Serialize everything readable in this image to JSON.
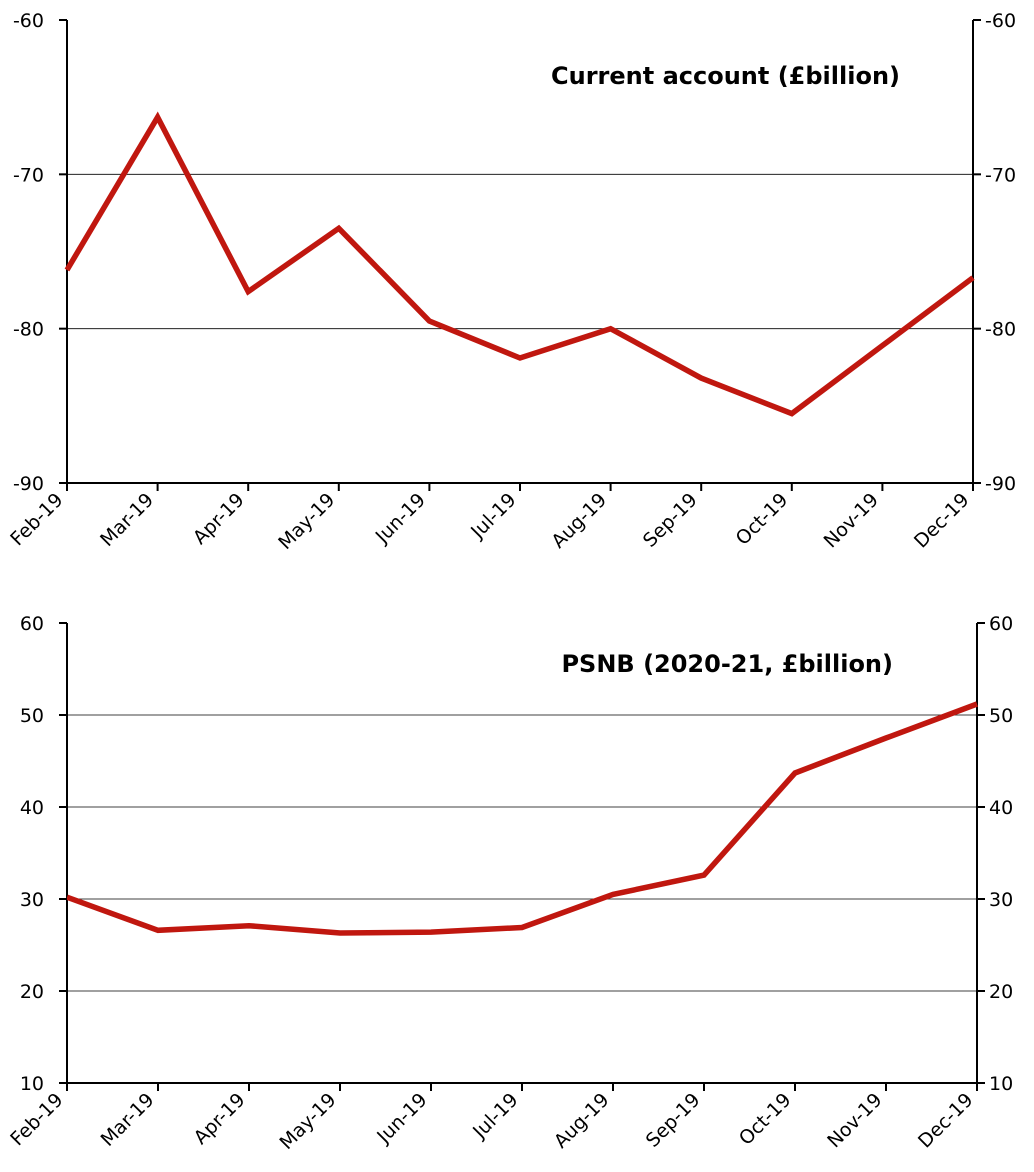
{
  "chart_data": [
    {
      "type": "line",
      "title": "Current account (£billion)",
      "xlabel": "",
      "ylabel": "",
      "categories": [
        "Feb-19",
        "Mar-19",
        "Apr-19",
        "May-19",
        "Jun-19",
        "Jul-19",
        "Aug-19",
        "Sep-19",
        "Oct-19",
        "Nov-19",
        "Dec-19"
      ],
      "y_tick_labels": [
        "-60",
        "-70",
        "-80",
        "-90"
      ],
      "ylim": [
        -90,
        -60
      ],
      "yticks": [
        -60,
        -70,
        -80,
        -90
      ],
      "grid": true,
      "legend": "none",
      "series": [
        {
          "color": "#c0170f",
          "values": [
            -76.2,
            -66.3,
            -77.6,
            -73.5,
            -79.5,
            -81.9,
            -80.0,
            -83.2,
            -85.5,
            -81.1,
            -76.7
          ]
        }
      ]
    },
    {
      "type": "line",
      "title": "PSNB (2020-21, £billion)",
      "xlabel": "",
      "ylabel": "",
      "categories": [
        "Feb-19",
        "Mar-19",
        "Apr-19",
        "May-19",
        "Jun-19",
        "Jul-19",
        "Aug-19",
        "Sep-19",
        "Oct-19",
        "Nov-19",
        "Dec-19"
      ],
      "y_tick_labels": [
        "60",
        "50",
        "40",
        "30",
        "20",
        "10"
      ],
      "ylim": [
        10,
        60
      ],
      "yticks": [
        60,
        50,
        40,
        30,
        20,
        10
      ],
      "grid": true,
      "legend": "none",
      "series": [
        {
          "color": "#c0170f",
          "values": [
            30.2,
            26.6,
            27.1,
            26.3,
            26.4,
            26.9,
            30.5,
            32.6,
            43.7,
            47.5,
            51.2
          ]
        }
      ]
    }
  ]
}
